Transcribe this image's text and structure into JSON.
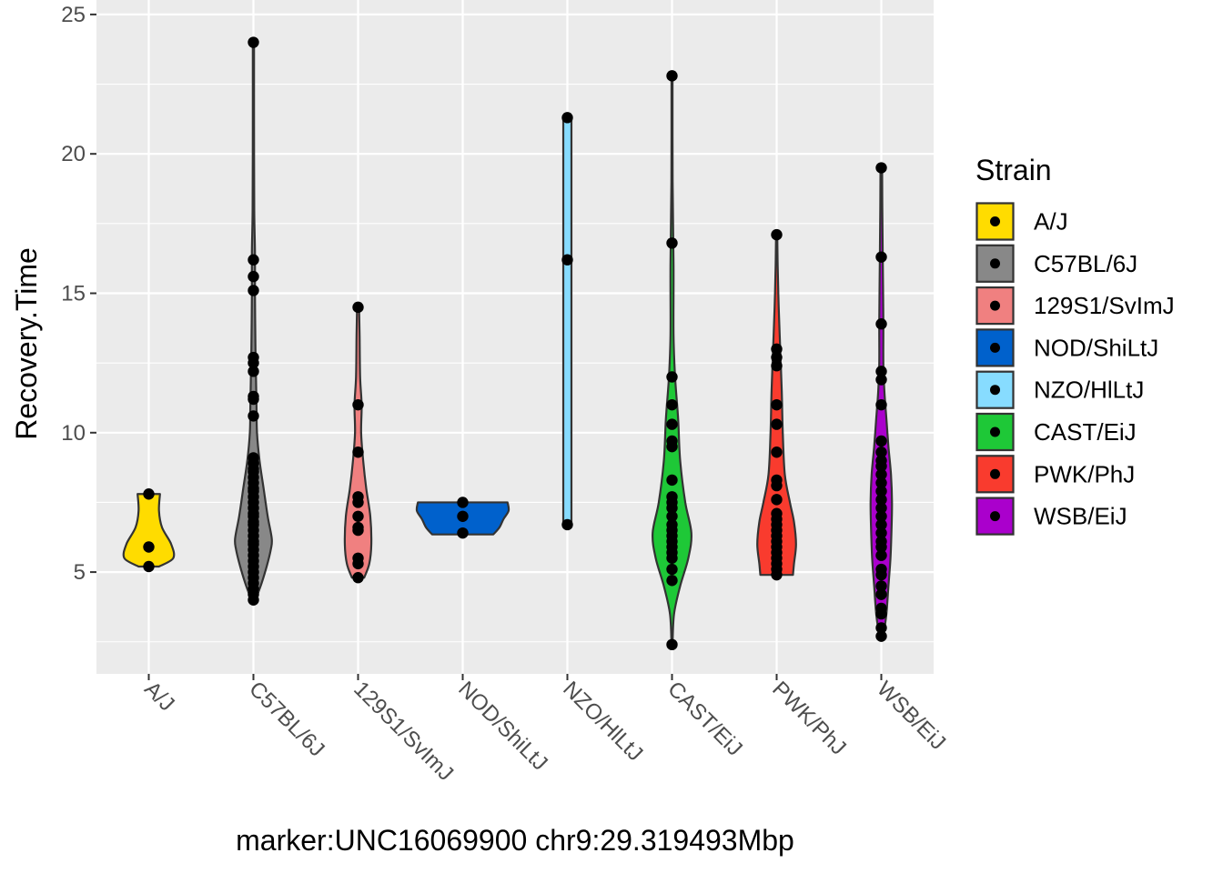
{
  "chart_data": {
    "type": "violin",
    "xlabel": "marker:UNC16069900 chr9:29.319493Mbp",
    "ylabel": "Recovery.Time",
    "ylim": [
      1,
      25
    ],
    "yticks": [
      5,
      10,
      15,
      20,
      25
    ],
    "grid": true,
    "legend": {
      "title": "Strain",
      "position": "right"
    },
    "categories": [
      "A/J",
      "C57BL/6J",
      "129S1/SvImJ",
      "NOD/ShiLtJ",
      "NZO/HlLtJ",
      "CAST/EiJ",
      "PWK/PhJ",
      "WSB/EiJ"
    ],
    "series": [
      {
        "name": "A/J",
        "color": "#FFDC00",
        "points": [
          7.8,
          5.9,
          5.2
        ],
        "violin": [
          [
            5.2,
            0.1
          ],
          [
            5.5,
            0.24
          ],
          [
            6.0,
            0.22
          ],
          [
            6.6,
            0.13
          ],
          [
            7.2,
            0.1
          ],
          [
            7.8,
            0.11
          ]
        ]
      },
      {
        "name": "C57BL/6J",
        "color": "#888888",
        "points": [
          24.0,
          16.2,
          15.6,
          15.1,
          12.7,
          12.5,
          12.2,
          11.3,
          11.2,
          10.6,
          9.1,
          8.9,
          8.7,
          8.6,
          8.4,
          8.2,
          8.0,
          7.9,
          7.7,
          7.5,
          7.3,
          7.1,
          7.0,
          6.8,
          6.7,
          6.5,
          6.3,
          6.1,
          6.0,
          5.8,
          5.6,
          5.4,
          5.2,
          5.0,
          4.8,
          4.6,
          4.4,
          4.2,
          4.0
        ],
        "violin": [
          [
            4.0,
            0.02
          ],
          [
            4.6,
            0.08
          ],
          [
            5.2,
            0.13
          ],
          [
            5.8,
            0.17
          ],
          [
            6.2,
            0.18
          ],
          [
            7.0,
            0.14
          ],
          [
            8.0,
            0.1
          ],
          [
            9.0,
            0.06
          ],
          [
            10.0,
            0.035
          ],
          [
            11.0,
            0.03
          ],
          [
            12.0,
            0.025
          ],
          [
            13.0,
            0.02
          ],
          [
            15.0,
            0.015
          ],
          [
            16.5,
            0.015
          ],
          [
            18.0,
            0.008
          ],
          [
            21.0,
            0.006
          ],
          [
            24.0,
            0.006
          ]
        ]
      },
      {
        "name": "129S1/SvImJ",
        "color": "#F08080",
        "points": [
          14.5,
          11.0,
          9.3,
          7.7,
          7.5,
          7.0,
          6.6,
          6.5,
          5.5,
          5.3,
          4.8
        ],
        "violin": [
          [
            4.8,
            0.06
          ],
          [
            5.3,
            0.11
          ],
          [
            6.0,
            0.13
          ],
          [
            7.0,
            0.12
          ],
          [
            8.0,
            0.08
          ],
          [
            9.0,
            0.05
          ],
          [
            10.0,
            0.03
          ],
          [
            11.0,
            0.035
          ],
          [
            12.0,
            0.02
          ],
          [
            13.5,
            0.015
          ],
          [
            14.5,
            0.01
          ]
        ]
      },
      {
        "name": "NOD/ShiLtJ",
        "color": "#0061CC",
        "points": [
          7.5,
          7.0,
          6.4
        ],
        "violin": [
          [
            6.35,
            0.3
          ],
          [
            6.6,
            0.36
          ],
          [
            6.9,
            0.4
          ],
          [
            7.2,
            0.45
          ],
          [
            7.5,
            0.44
          ]
        ]
      },
      {
        "name": "NZO/HlLtJ",
        "color": "#87DCFF",
        "points": [
          21.3,
          16.2,
          6.7
        ],
        "violin": [
          [
            6.7,
            0.04
          ],
          [
            10.0,
            0.04
          ],
          [
            16.2,
            0.04
          ],
          [
            20.5,
            0.04
          ],
          [
            21.3,
            0.04
          ]
        ]
      },
      {
        "name": "CAST/EiJ",
        "color": "#1EC837",
        "points": [
          22.8,
          16.8,
          12.0,
          11.0,
          10.3,
          9.7,
          9.5,
          8.3,
          7.7,
          7.5,
          7.3,
          7.0,
          6.7,
          6.5,
          6.3,
          6.1,
          5.9,
          5.7,
          5.5,
          5.1,
          4.7,
          2.4
        ],
        "violin": [
          [
            2.4,
            0.005
          ],
          [
            3.5,
            0.02
          ],
          [
            4.5,
            0.08
          ],
          [
            5.5,
            0.16
          ],
          [
            6.4,
            0.19
          ],
          [
            7.5,
            0.13
          ],
          [
            9.0,
            0.08
          ],
          [
            10.5,
            0.06
          ],
          [
            12.0,
            0.03
          ],
          [
            13.5,
            0.015
          ],
          [
            16.0,
            0.015
          ],
          [
            19.0,
            0.006
          ],
          [
            22.8,
            0.005
          ]
        ]
      },
      {
        "name": "PWK/PhJ",
        "color": "#F93B2E",
        "points": [
          17.1,
          13.0,
          12.7,
          12.4,
          11.0,
          10.3,
          9.3,
          8.3,
          8.1,
          7.6,
          7.1,
          6.9,
          6.7,
          6.5,
          6.3,
          6.1,
          5.9,
          5.7,
          5.5,
          5.3,
          5.1,
          4.9
        ],
        "violin": [
          [
            4.9,
            0.16
          ],
          [
            5.3,
            0.17
          ],
          [
            6.0,
            0.19
          ],
          [
            6.8,
            0.17
          ],
          [
            7.5,
            0.13
          ],
          [
            8.5,
            0.08
          ],
          [
            10.0,
            0.06
          ],
          [
            11.5,
            0.05
          ],
          [
            13.0,
            0.035
          ],
          [
            14.5,
            0.02
          ],
          [
            16.0,
            0.01
          ],
          [
            17.1,
            0.006
          ]
        ]
      },
      {
        "name": "WSB/EiJ",
        "color": "#AA00CC",
        "points": [
          19.5,
          16.3,
          13.9,
          12.2,
          11.9,
          11.0,
          9.7,
          9.3,
          9.0,
          8.8,
          8.5,
          8.2,
          7.9,
          7.6,
          7.3,
          7.0,
          6.7,
          6.4,
          6.1,
          5.9,
          5.6,
          5.1,
          4.9,
          4.5,
          4.2,
          3.7,
          3.5,
          3.0,
          2.7
        ],
        "violin": [
          [
            2.7,
            0.02
          ],
          [
            3.5,
            0.05
          ],
          [
            4.5,
            0.07
          ],
          [
            5.5,
            0.09
          ],
          [
            6.5,
            0.1
          ],
          [
            7.5,
            0.105
          ],
          [
            8.5,
            0.095
          ],
          [
            9.5,
            0.07
          ],
          [
            10.5,
            0.05
          ],
          [
            11.5,
            0.03
          ],
          [
            12.5,
            0.02
          ],
          [
            14.0,
            0.02
          ],
          [
            16.0,
            0.015
          ],
          [
            18.0,
            0.01
          ],
          [
            19.5,
            0.008
          ]
        ]
      }
    ]
  }
}
